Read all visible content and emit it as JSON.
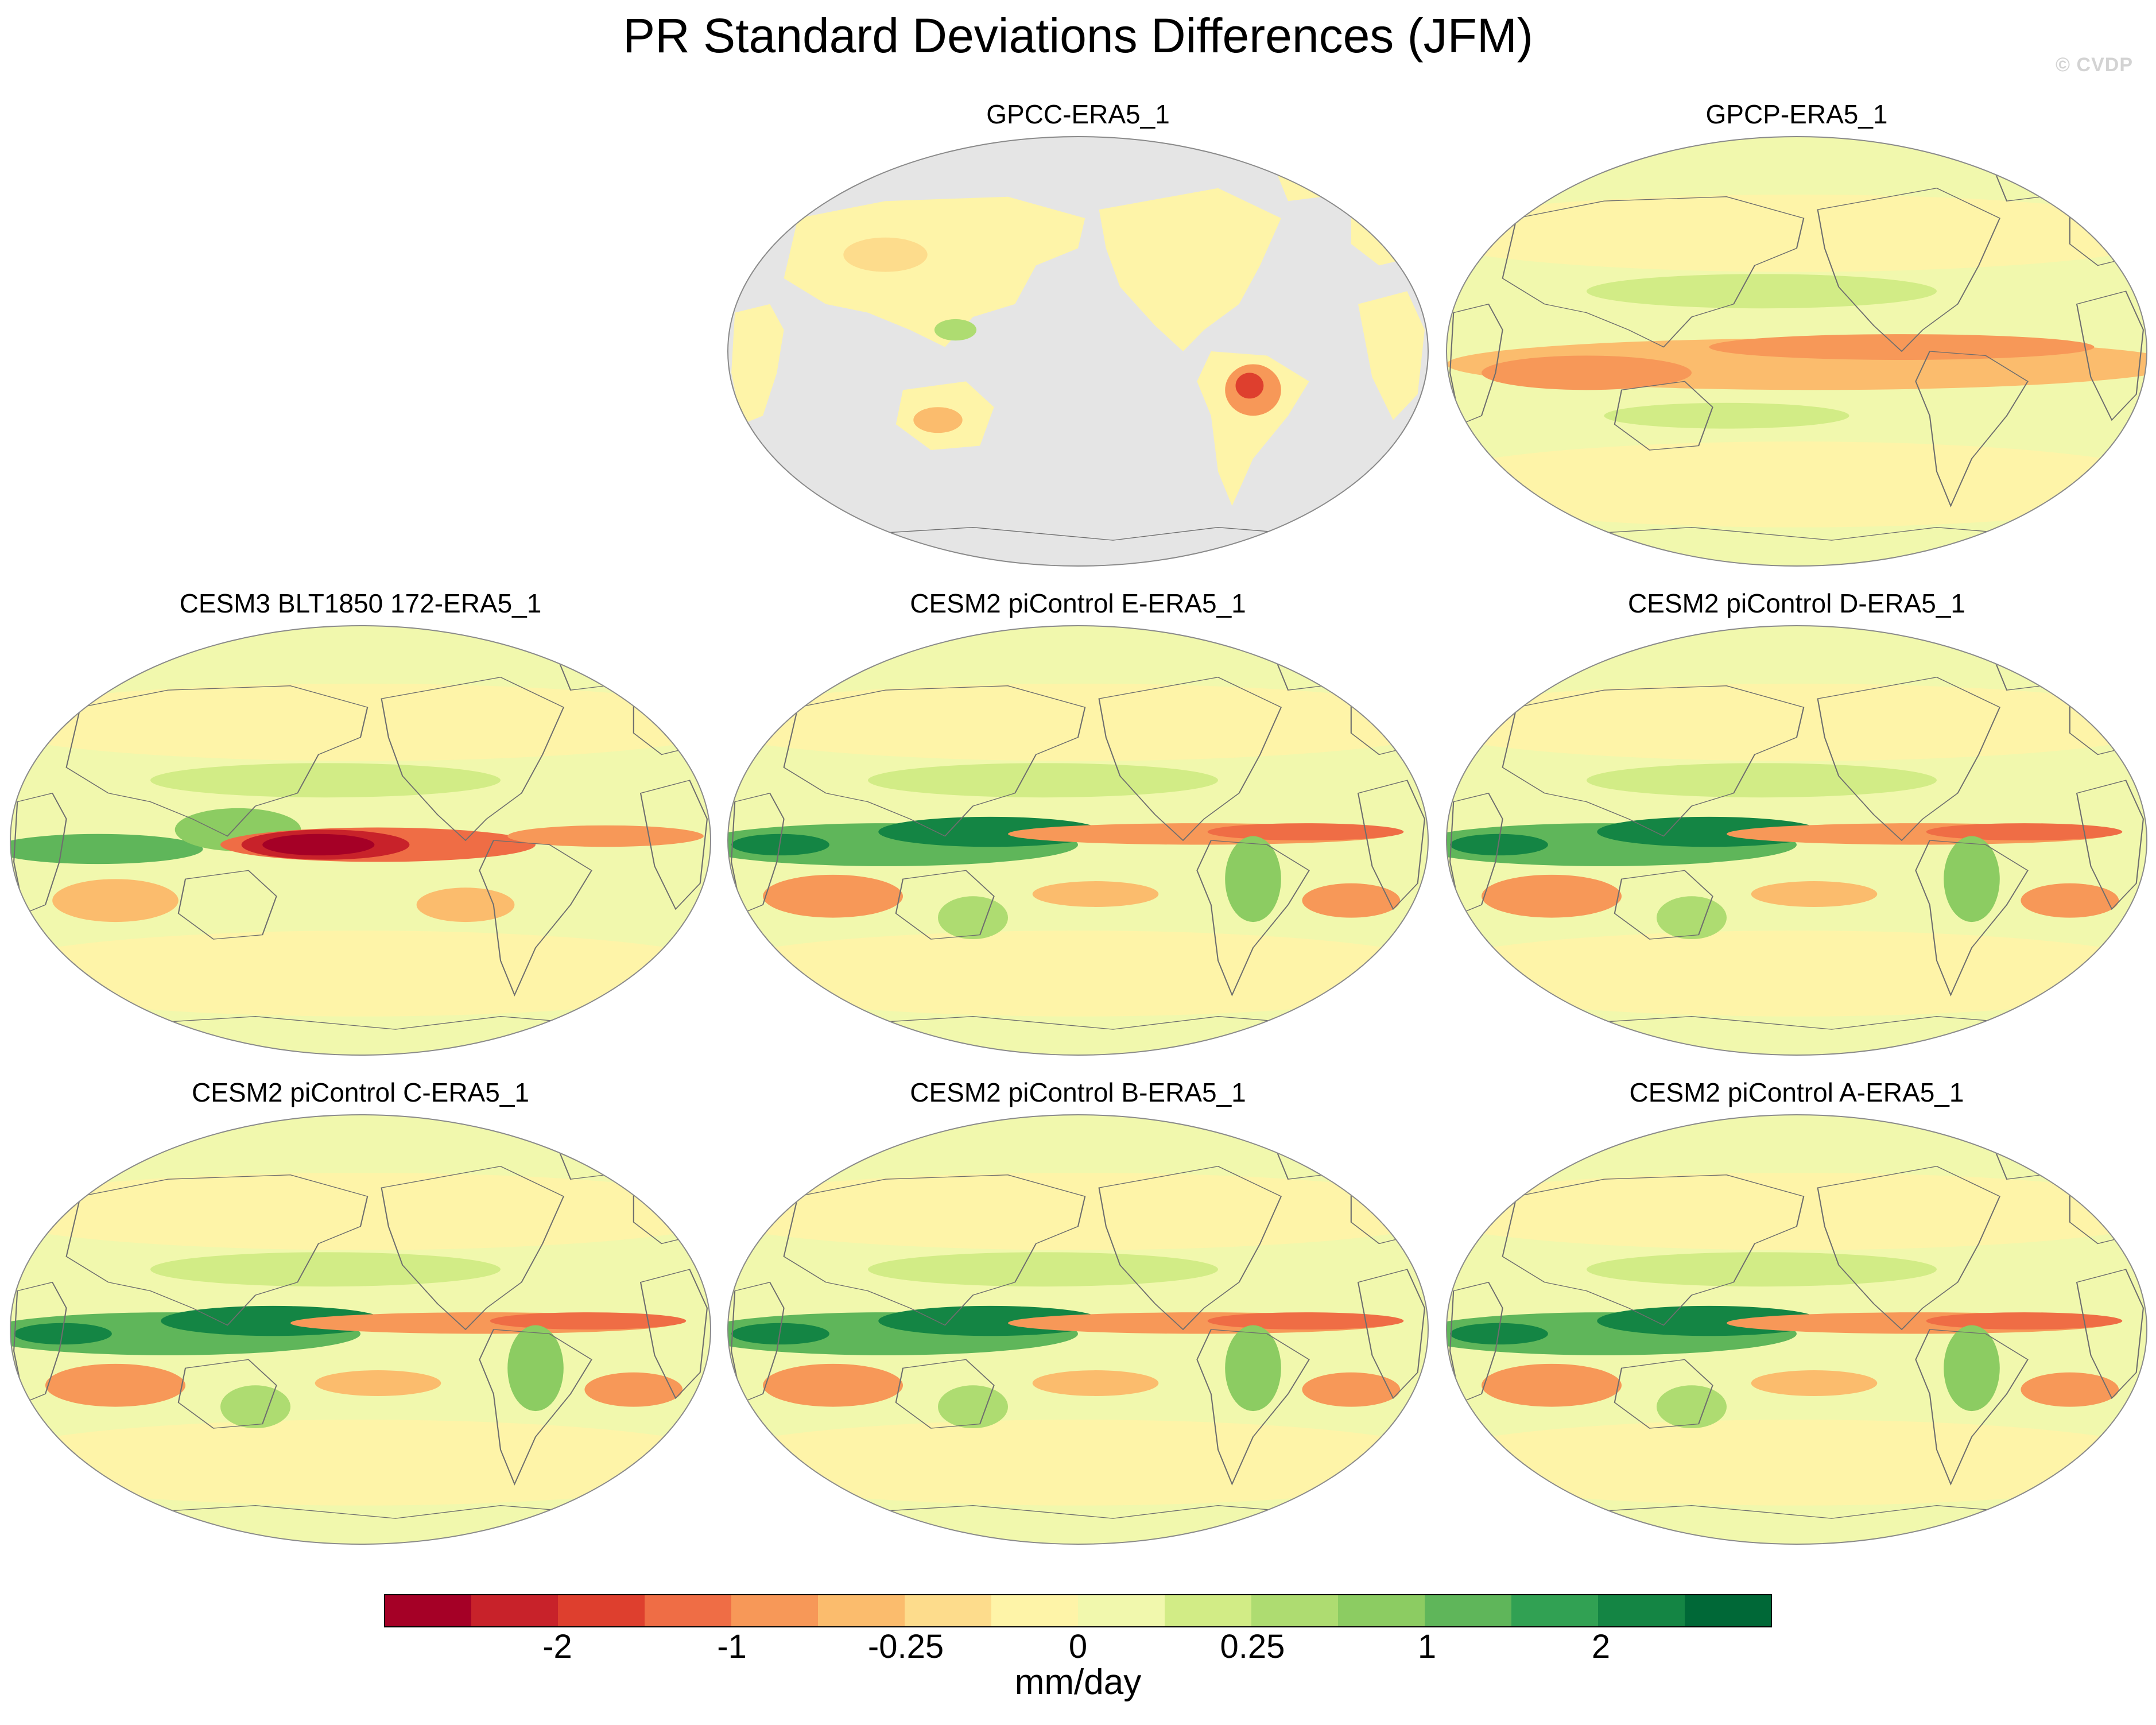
{
  "title": "PR Standard Deviations Differences (JFM)",
  "watermark": "© CVDP",
  "colors": {
    "scale": [
      "#a50026",
      "#c8222a",
      "#de3f2e",
      "#ef6d45",
      "#f79858",
      "#fbbc6d",
      "#fddc8c",
      "#fef4a8",
      "#f1f8ad",
      "#d2ec86",
      "#aedc71",
      "#8ccc62",
      "#5fb65a",
      "#31a153",
      "#148544",
      "#006837"
    ],
    "ocean_mask": "#e5e5e5",
    "coast": "#6e6e6e"
  },
  "colorbar": {
    "tick_labels": [
      "-2",
      "-1",
      "-0.25",
      "0",
      "0.25",
      "1",
      "2"
    ],
    "units": "mm/day"
  },
  "chart_data": {
    "type": "heatmap",
    "title": "PR Standard Deviations Differences (JFM)",
    "variable": "PR",
    "season": "JFM",
    "units": "mm/day",
    "colorbar_ticks": [
      -2,
      -1,
      -0.25,
      0,
      0.25,
      1,
      2
    ],
    "panels": [
      {
        "title": "GPCC-ERA5_1",
        "land_only": true
      },
      {
        "title": "GPCP-ERA5_1",
        "land_only": false
      },
      {
        "title": "CESM3 BLT1850 172-ERA5_1",
        "land_only": false
      },
      {
        "title": "CESM2 piControl E-ERA5_1",
        "land_only": false
      },
      {
        "title": "CESM2 piControl D-ERA5_1",
        "land_only": false
      },
      {
        "title": "CESM2 piControl C-ERA5_1",
        "land_only": false
      },
      {
        "title": "CESM2 piControl B-ERA5_1",
        "land_only": false
      },
      {
        "title": "CESM2 piControl A-ERA5_1",
        "land_only": false
      }
    ]
  }
}
